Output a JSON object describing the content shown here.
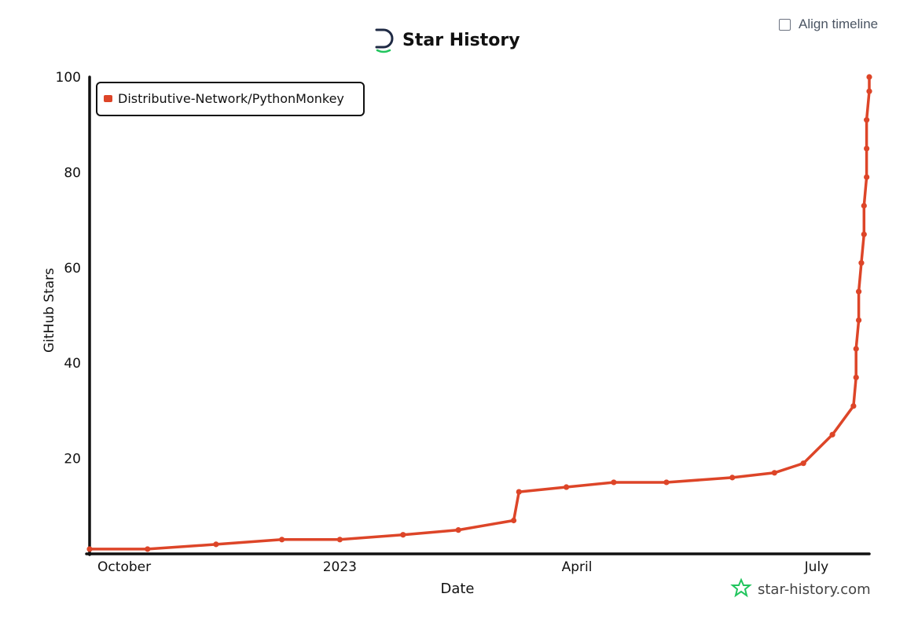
{
  "controls": {
    "align_timeline_label": "Align timeline"
  },
  "header": {
    "title": "Star History",
    "logo_icon": "star-history-logo-icon"
  },
  "watermark": {
    "text": "star-history.com",
    "icon": "star-outline-icon",
    "color": "#22c55e"
  },
  "chart_data": {
    "type": "line",
    "title": "Star History",
    "xlabel": "Date",
    "ylabel": "GitHub Stars",
    "x_ticks": [
      "October",
      "2023",
      "April",
      "July"
    ],
    "y_ticks": [
      20,
      40,
      60,
      80,
      100
    ],
    "ylim": [
      0,
      100
    ],
    "legend_position": "top-left",
    "grid": false,
    "series": [
      {
        "name": "Distributive-Network/PythonMonkey",
        "color": "#dd4528",
        "points": [
          [
            "2022-09-28",
            1
          ],
          [
            "2022-10-20",
            1
          ],
          [
            "2022-11-15",
            2
          ],
          [
            "2022-12-10",
            3
          ],
          [
            "2023-01-01",
            3
          ],
          [
            "2023-01-25",
            4
          ],
          [
            "2023-02-15",
            5
          ],
          [
            "2023-03-08",
            7
          ],
          [
            "2023-03-10",
            13
          ],
          [
            "2023-03-28",
            14
          ],
          [
            "2023-04-15",
            15
          ],
          [
            "2023-05-05",
            15
          ],
          [
            "2023-05-30",
            16
          ],
          [
            "2023-06-15",
            17
          ],
          [
            "2023-06-26",
            19
          ],
          [
            "2023-07-07",
            25
          ],
          [
            "2023-07-15",
            31
          ],
          [
            "2023-07-16",
            37
          ],
          [
            "2023-07-16",
            43
          ],
          [
            "2023-07-17",
            49
          ],
          [
            "2023-07-17",
            55
          ],
          [
            "2023-07-18",
            61
          ],
          [
            "2023-07-19",
            67
          ],
          [
            "2023-07-19",
            73
          ],
          [
            "2023-07-20",
            79
          ],
          [
            "2023-07-20",
            85
          ],
          [
            "2023-07-20",
            91
          ],
          [
            "2023-07-21",
            97
          ],
          [
            "2023-07-21",
            100
          ]
        ]
      }
    ]
  }
}
